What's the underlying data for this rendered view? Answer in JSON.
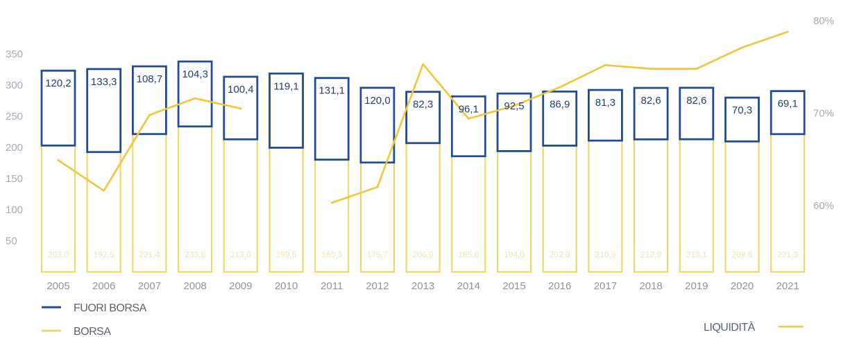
{
  "chart_data": {
    "type": "bar",
    "categories": [
      "2005",
      "2006",
      "2007",
      "2008",
      "2009",
      "2010",
      "2011",
      "2012",
      "2013",
      "2014",
      "2015",
      "2016",
      "2017",
      "2018",
      "2019",
      "2020",
      "2021"
    ],
    "series": [
      {
        "name": "BORSA",
        "stack": "volume",
        "values": [
          203.0,
          192.5,
          221.4,
          233.6,
          213.0,
          199.5,
          180.3,
          175.7,
          206.9,
          185.8,
          194.0,
          202.8,
          210.9,
          212.9,
          213.1,
          209.6,
          221.3
        ],
        "labels": [
          "203,0",
          "192,5",
          "221,4",
          "233,6",
          "213,0",
          "199,5",
          "180,3",
          "175,7",
          "206,9",
          "185,8",
          "194,0",
          "202,8",
          "210,9",
          "212,9",
          "213,1",
          "209,6",
          "221,3"
        ]
      },
      {
        "name": "FUORI BORSA",
        "stack": "volume",
        "values": [
          120.2,
          133.3,
          108.7,
          104.3,
          100.4,
          119.1,
          131.1,
          120.0,
          82.3,
          96.1,
          92.5,
          86.9,
          81.3,
          82.6,
          82.6,
          70.3,
          69.1
        ],
        "labels": [
          "120,2",
          "133,3",
          "108,7",
          "104,3",
          "100,4",
          "119,1",
          "131,1",
          "120,0",
          "82,3",
          "96,1",
          "92,5",
          "86,9",
          "81,3",
          "82,6",
          "82,6",
          "70,3",
          "69,1"
        ]
      },
      {
        "name": "LIQUIDITÀ",
        "type": "line",
        "axis": "right",
        "values": [
          64.9,
          61.6,
          69.8,
          71.6,
          70.5,
          null,
          60.3,
          62.0,
          75.3,
          69.4,
          70.8,
          72.8,
          75.2,
          74.8,
          74.8,
          77.1,
          78.8
        ]
      }
    ],
    "y_left": {
      "min": 0,
      "max": 360,
      "ticks": [
        50,
        100,
        150,
        200,
        250,
        300,
        350
      ],
      "tick_labels": [
        "50",
        "100",
        "150",
        "200",
        "250",
        "300",
        "350"
      ]
    },
    "y_right": {
      "min": 50,
      "max": 82,
      "ticks": [
        60,
        70,
        80
      ],
      "tick_labels": [
        "60%",
        "70%",
        "80%"
      ]
    },
    "legend": [
      {
        "label": "FUORI BORSA",
        "color": "#1f4c94"
      },
      {
        "label": "BORSA",
        "color": "#ecd96a"
      },
      {
        "label": "LIQUIDITÀ",
        "color": "#f2c437"
      }
    ],
    "grid": false,
    "colors": {
      "fuori": "#1f4c94",
      "borsa": "#ecd96a",
      "line": "#f2c437"
    }
  }
}
